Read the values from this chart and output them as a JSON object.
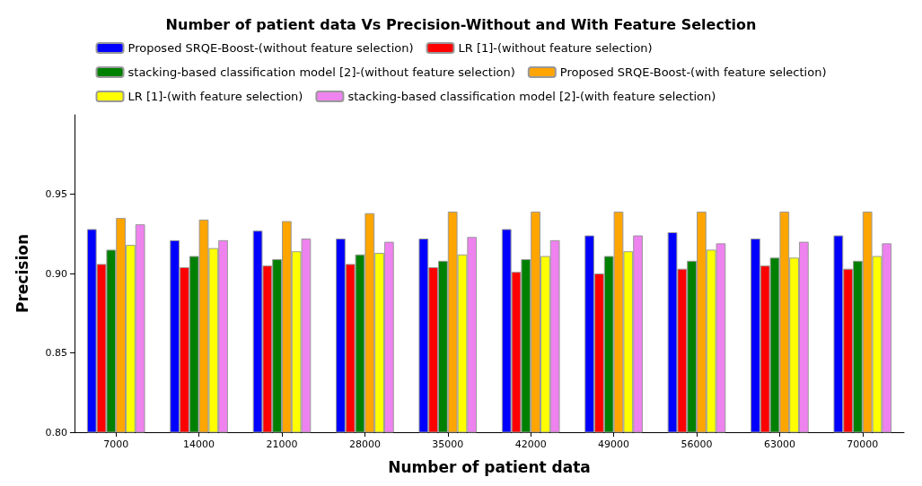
{
  "chart_data": {
    "type": "bar",
    "title": "Number of patient data Vs Precision-Without and With Feature Selection",
    "xlabel": "Number of patient data",
    "ylabel": "Precision",
    "categories": [
      "7000",
      "14000",
      "21000",
      "28000",
      "35000",
      "42000",
      "49000",
      "56000",
      "63000",
      "70000"
    ],
    "series": [
      {
        "name": "Proposed SRQE-Boost-(without feature selection)",
        "color": "#0000ff",
        "values": [
          0.928,
          0.921,
          0.927,
          0.922,
          0.922,
          0.928,
          0.924,
          0.926,
          0.922,
          0.924
        ]
      },
      {
        "name": "LR [1]-(without feature selection)",
        "color": "#ff0000",
        "values": [
          0.906,
          0.904,
          0.905,
          0.906,
          0.904,
          0.901,
          0.9,
          0.903,
          0.905,
          0.903
        ]
      },
      {
        "name": "stacking-based classification model [2]-(without feature selection)",
        "color": "#008000",
        "values": [
          0.915,
          0.911,
          0.909,
          0.912,
          0.908,
          0.909,
          0.911,
          0.908,
          0.91,
          0.908
        ]
      },
      {
        "name": "Proposed SRQE-Boost-(with feature selection)",
        "color": "#ffa500",
        "values": [
          0.935,
          0.934,
          0.933,
          0.938,
          0.939,
          0.939,
          0.939,
          0.939,
          0.939,
          0.939
        ]
      },
      {
        "name": "LR [1]-(with feature selection)",
        "color": "#ffff00",
        "values": [
          0.918,
          0.916,
          0.914,
          0.913,
          0.912,
          0.911,
          0.914,
          0.915,
          0.91,
          0.911
        ]
      },
      {
        "name": "stacking-based classification model [2]-(with feature selection)",
        "color": "#ee82ee",
        "values": [
          0.931,
          0.921,
          0.922,
          0.92,
          0.923,
          0.921,
          0.924,
          0.919,
          0.92,
          0.919
        ]
      }
    ],
    "ylim": [
      0.8,
      1.0
    ],
    "yticks": [
      {
        "value": 0.8,
        "label": "0.80"
      },
      {
        "value": 0.85,
        "label": "0.85"
      },
      {
        "value": 0.9,
        "label": "0.90"
      },
      {
        "value": 0.95,
        "label": "0.95"
      }
    ],
    "grid": false,
    "legend": "top"
  }
}
